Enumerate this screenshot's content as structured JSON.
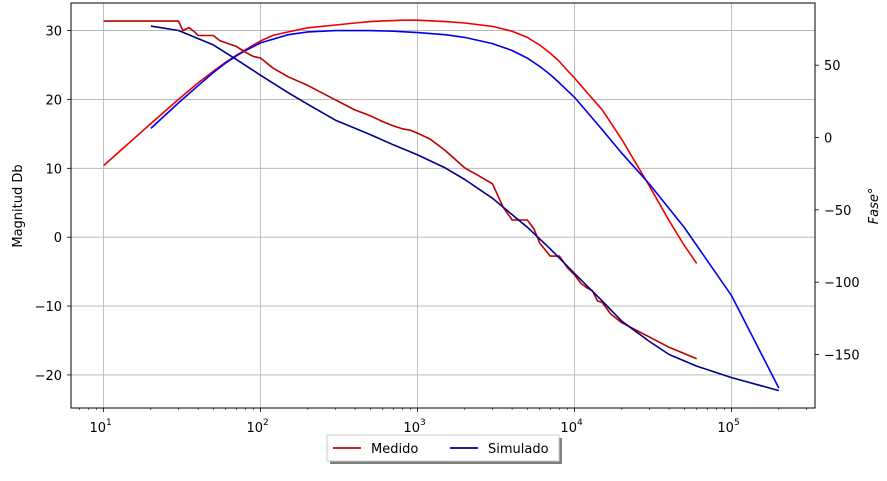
{
  "chart_data": {
    "type": "line",
    "xlabel": "",
    "ylabel_left": "Magnitud Db",
    "ylabel_right": "Fase°",
    "x_scale": "log",
    "xlim": [
      6.2,
      340000
    ],
    "ylim_left": [
      -24.8,
      34
    ],
    "ylim_right": [
      -187,
      93
    ],
    "x_ticks": [
      10,
      100,
      1000,
      10000,
      100000
    ],
    "x_tick_labels": [
      [
        "10",
        "1"
      ],
      [
        "10",
        "2"
      ],
      [
        "10",
        "3"
      ],
      [
        "10",
        "4"
      ],
      [
        "10",
        "5"
      ]
    ],
    "y_ticks_left": [
      30,
      20,
      10,
      0,
      -10,
      -20
    ],
    "y_tick_labels_left": [
      "30",
      "20",
      "10",
      "0",
      "−10",
      "−20"
    ],
    "y_ticks_right": [
      50,
      0,
      -50,
      -100,
      -150
    ],
    "y_tick_labels_right": [
      "50",
      "0",
      "−50",
      "−100",
      "−150"
    ],
    "grid": true,
    "legend_placement": "bottom-center",
    "legend_entries": [
      {
        "label": "Medido",
        "color": "#cc0000"
      },
      {
        "label": "Simulado",
        "color": "#00008b"
      }
    ],
    "series": [
      {
        "name": "Medido",
        "quantity": "magnitude",
        "axis": "left",
        "color": "#ee0000",
        "x": [
          10,
          20,
          30,
          40,
          50,
          60,
          70,
          80,
          90,
          100,
          120,
          150,
          200,
          300,
          400,
          500,
          600,
          700,
          800,
          900,
          1000,
          1500,
          2000,
          3000,
          4000,
          5000,
          6000,
          7000,
          8000,
          9000,
          10000,
          12000,
          15000,
          20000,
          30000,
          40000,
          50000,
          60000
        ],
        "y": [
          10.4,
          16.5,
          20.0,
          22.4,
          24.1,
          25.4,
          26.4,
          27.2,
          27.9,
          28.5,
          29.3,
          29.8,
          30.4,
          30.8,
          31.1,
          31.3,
          31.4,
          31.45,
          31.5,
          31.5,
          31.5,
          31.3,
          31.1,
          30.6,
          29.9,
          29.0,
          27.9,
          26.7,
          25.5,
          24.2,
          23.1,
          21.0,
          18.5,
          14.2,
          7.4,
          2.4,
          -1.2,
          -3.8
        ]
      },
      {
        "name": "Simulado",
        "quantity": "magnitude",
        "axis": "left",
        "color": "#0000ee",
        "x": [
          20,
          30,
          40,
          50,
          60,
          70,
          80,
          100,
          150,
          200,
          300,
          500,
          700,
          1000,
          1500,
          2000,
          3000,
          4000,
          5000,
          6000,
          7000,
          8000,
          10000,
          15000,
          20000,
          30000,
          50000,
          100000,
          200000
        ],
        "y": [
          15.8,
          19.5,
          22.0,
          23.9,
          25.3,
          26.3,
          27.1,
          28.2,
          29.4,
          29.8,
          30.0,
          30.0,
          29.9,
          29.7,
          29.4,
          29.0,
          28.1,
          27.1,
          26.0,
          24.8,
          23.6,
          22.4,
          20.3,
          15.6,
          12.2,
          7.7,
          1.4,
          -8.5,
          -21.9
        ]
      },
      {
        "name": "Medido",
        "quantity": "phase",
        "axis": "right",
        "color": "#bb0000",
        "x": [
          10,
          20,
          30,
          32,
          35,
          38,
          40,
          45,
          50,
          55,
          60,
          70,
          80,
          90,
          100,
          120,
          150,
          200,
          300,
          400,
          500,
          600,
          700,
          800,
          900,
          1000,
          1200,
          1500,
          2000,
          2500,
          3000,
          3500,
          4000,
          4500,
          5000,
          5500,
          6000,
          7000,
          8000,
          9000,
          10000,
          11000,
          12000,
          13000,
          14000,
          15000,
          17000,
          20000,
          30000,
          40000,
          60000
        ],
        "y": [
          80.5,
          80.5,
          80.5,
          74.0,
          76.0,
          73.0,
          70.5,
          70.5,
          70.5,
          67.0,
          65.5,
          63.0,
          59.0,
          56.0,
          55.0,
          48.0,
          42.0,
          36.0,
          26.0,
          19.0,
          15.0,
          11.0,
          8.0,
          6.0,
          5.0,
          3.0,
          -1.0,
          -9.0,
          -21.0,
          -27.0,
          -32.0,
          -48.0,
          -57.0,
          -57.0,
          -57.0,
          -63.0,
          -73.0,
          -82.0,
          -82.0,
          -90.0,
          -95.0,
          -101.0,
          -104.0,
          -106.0,
          -113.0,
          -114.0,
          -122.0,
          -128.0,
          -138.0,
          -145.0,
          -153.0
        ]
      },
      {
        "name": "Simulado",
        "quantity": "phase",
        "axis": "right",
        "color": "#00008b",
        "x": [
          20,
          30,
          50,
          70,
          100,
          150,
          200,
          300,
          500,
          700,
          1000,
          1500,
          2000,
          3000,
          5000,
          7000,
          10000,
          15000,
          20000,
          30000,
          40000,
          60000,
          100000,
          200000
        ],
        "y": [
          77.0,
          74.0,
          64.0,
          54.0,
          43.0,
          31.0,
          23.0,
          12.0,
          2.0,
          -5.0,
          -12.0,
          -21.0,
          -29.0,
          -42.0,
          -62.0,
          -77.0,
          -94.0,
          -113.0,
          -127.0,
          -141.0,
          -150.0,
          -158.0,
          -166.0,
          -175.0
        ]
      }
    ]
  }
}
